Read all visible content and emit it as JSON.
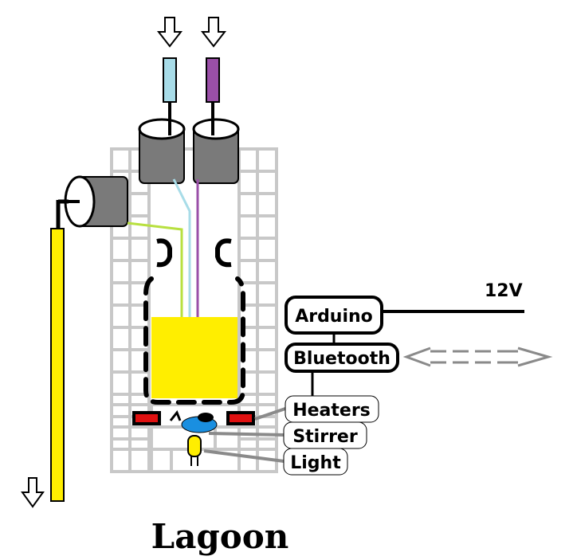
{
  "title": "Lagoon",
  "labels": {
    "arduino": "Arduino",
    "bluetooth": "Bluetooth",
    "heaters": "Heaters",
    "stirrer": "Stirrer",
    "light": "Light",
    "power": "12V"
  },
  "colors": {
    "frame": "#c8c8c8",
    "culture": "#ffee00",
    "inflow_a": "#a8dce8",
    "inflow_b": "#9a4fa8",
    "line_green": "#b8e040",
    "stirrer": "#1a8fe0",
    "heater": "#e01010",
    "cap": "#7a7a7a"
  }
}
